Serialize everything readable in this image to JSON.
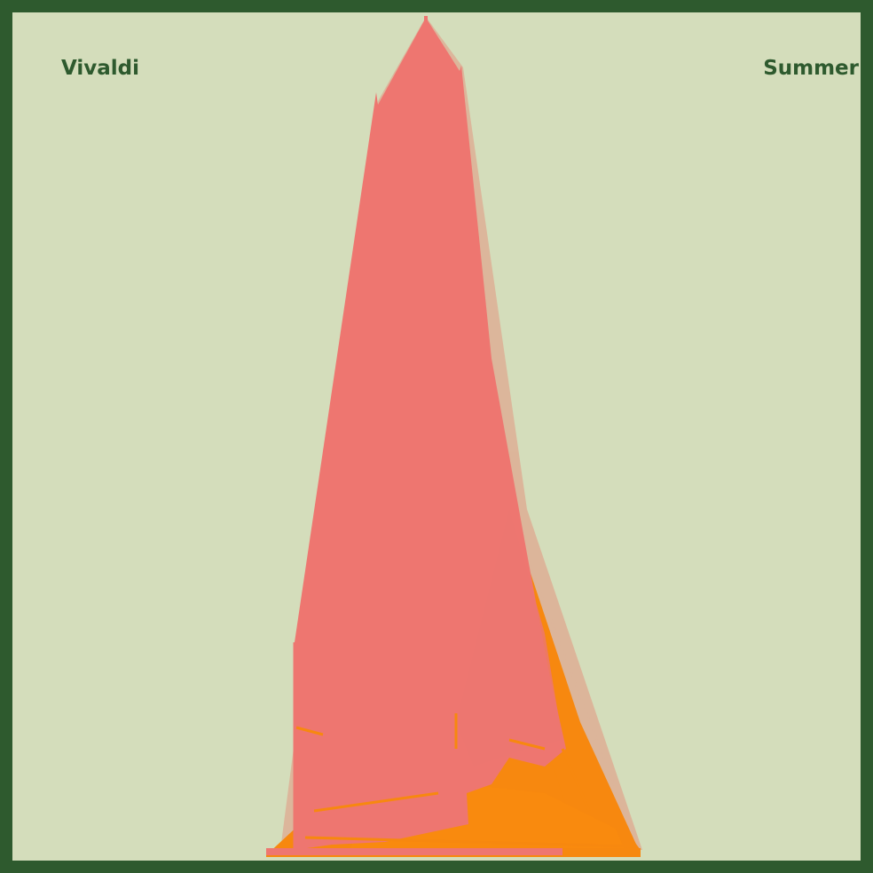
{
  "composer": "Vivaldi",
  "season": "Summer",
  "colors": {
    "frame": "#2e5a2e",
    "background": "#d4ddbb",
    "text": "#2e5a2e",
    "primary_shape": "#ee7670",
    "secondary_shape": "#f7880f",
    "faint_shape": "#e0a58d"
  }
}
